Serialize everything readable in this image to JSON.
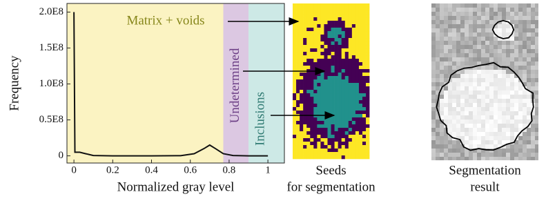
{
  "chart_data": {
    "type": "line",
    "x_label": "Normalized gray level",
    "y_label": "Frequency",
    "xlim": [
      -0.036,
      1.085
    ],
    "ylim": [
      -10000000,
      212000000
    ],
    "xticks": [
      0,
      0.2,
      0.4,
      0.6,
      0.8,
      1
    ],
    "yticks": [
      0,
      {
        "value": 50000000,
        "label": "0.5E8"
      },
      {
        "value": 100000000,
        "label": "1.0E8"
      },
      {
        "value": 150000000,
        "label": "1.5E8"
      },
      {
        "value": 200000000,
        "label": "2.0E8"
      }
    ],
    "regions": [
      {
        "label": "Matrix + voids",
        "from": -0.036,
        "to": 0.77,
        "color": "#fbf3c2",
        "text_color": "#86861a"
      },
      {
        "label": "Undetermined",
        "from": 0.77,
        "to": 0.9,
        "color": "#dcc8e2",
        "text_color": "#6d3f86"
      },
      {
        "label": "Inclusions",
        "from": 0.9,
        "to": 1.085,
        "color": "#cde9e6",
        "text_color": "#2f7a72"
      }
    ],
    "series": [
      {
        "color": "#111111",
        "x": [
          0,
          0.005,
          0.03,
          0.06,
          0.1,
          0.2,
          0.4,
          0.55,
          0.62,
          0.67,
          0.7,
          0.73,
          0.77,
          0.82,
          0.9,
          1.0
        ],
        "values": [
          200000000,
          5000000,
          5000000,
          3000000,
          500000,
          0,
          0,
          200000,
          3000000,
          10000000,
          15000000,
          10000000,
          3000000,
          500000,
          0,
          0
        ]
      }
    ],
    "panels": [
      {
        "caption": [
          "Seeds",
          "for segmentation"
        ]
      },
      {
        "caption": [
          "Segmentation",
          "result"
        ]
      }
    ]
  }
}
